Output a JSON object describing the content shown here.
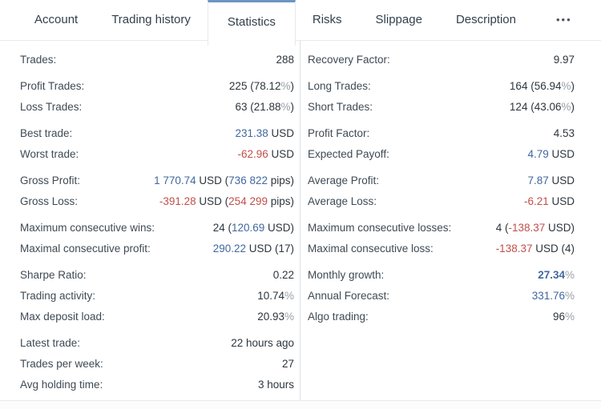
{
  "tabs": {
    "items": [
      {
        "label": "Account",
        "active": false
      },
      {
        "label": "Trading history",
        "active": false
      },
      {
        "label": "Statistics",
        "active": true
      },
      {
        "label": "Risks",
        "active": false
      },
      {
        "label": "Slippage",
        "active": false
      },
      {
        "label": "Description",
        "active": false
      }
    ],
    "overflow_label": "•••"
  },
  "colors": {
    "accent_blue": "#40689f",
    "active_tab_border": "#6e94c4",
    "negative_red": "#c0504a",
    "muted_gray": "#9aa1a8",
    "label_gray": "#3e4a54",
    "value_dark": "#2d363d",
    "divider": "#dcdfe2"
  },
  "stats": {
    "left": [
      {
        "rows": [
          {
            "label": "Trades:",
            "segments": [
              {
                "text": "288",
                "style": "d"
              }
            ]
          }
        ]
      },
      {
        "rows": [
          {
            "label": "Profit Trades:",
            "segments": [
              {
                "text": "225 (78.12",
                "style": "d"
              },
              {
                "text": "%",
                "style": "m"
              },
              {
                "text": ")",
                "style": "d"
              }
            ]
          },
          {
            "label": "Loss Trades:",
            "segments": [
              {
                "text": "63 (21.88",
                "style": "d"
              },
              {
                "text": "%",
                "style": "m"
              },
              {
                "text": ")",
                "style": "d"
              }
            ]
          }
        ]
      },
      {
        "rows": [
          {
            "label": "Best trade:",
            "segments": [
              {
                "text": "231.38",
                "style": "b"
              },
              {
                "text": " USD",
                "style": "d"
              }
            ]
          },
          {
            "label": "Worst trade:",
            "segments": [
              {
                "text": "-62.96",
                "style": "r"
              },
              {
                "text": " USD",
                "style": "d"
              }
            ]
          }
        ]
      },
      {
        "rows": [
          {
            "label": "Gross Profit:",
            "segments": [
              {
                "text": "1 770.74",
                "style": "b"
              },
              {
                "text": " USD (",
                "style": "d"
              },
              {
                "text": "736 822",
                "style": "b"
              },
              {
                "text": " pips)",
                "style": "d"
              }
            ]
          },
          {
            "label": "Gross Loss:",
            "segments": [
              {
                "text": "-391.28",
                "style": "r"
              },
              {
                "text": " USD (",
                "style": "d"
              },
              {
                "text": "254 299",
                "style": "r"
              },
              {
                "text": " pips)",
                "style": "d"
              }
            ]
          }
        ]
      },
      {
        "rows": [
          {
            "label": "Maximum consecutive wins:",
            "segments": [
              {
                "text": "24 (",
                "style": "d"
              },
              {
                "text": "120.69",
                "style": "b"
              },
              {
                "text": " USD)",
                "style": "d"
              }
            ]
          },
          {
            "label": "Maximal consecutive profit:",
            "segments": [
              {
                "text": "290.22",
                "style": "b"
              },
              {
                "text": " USD (17)",
                "style": "d"
              }
            ]
          }
        ]
      },
      {
        "rows": [
          {
            "label": "Sharpe Ratio:",
            "segments": [
              {
                "text": "0.22",
                "style": "d"
              }
            ]
          },
          {
            "label": "Trading activity:",
            "segments": [
              {
                "text": "10.74",
                "style": "d"
              },
              {
                "text": "%",
                "style": "m"
              }
            ]
          },
          {
            "label": "Max deposit load:",
            "segments": [
              {
                "text": "20.93",
                "style": "d"
              },
              {
                "text": "%",
                "style": "m"
              }
            ]
          }
        ]
      },
      {
        "rows": [
          {
            "label": "Latest trade:",
            "segments": [
              {
                "text": "22 hours ago",
                "style": "d"
              }
            ]
          },
          {
            "label": "Trades per week:",
            "segments": [
              {
                "text": "27",
                "style": "d"
              }
            ]
          },
          {
            "label": "Avg holding time:",
            "segments": [
              {
                "text": "3 hours",
                "style": "d"
              }
            ]
          }
        ]
      }
    ],
    "right": [
      {
        "rows": [
          {
            "label": "Recovery Factor:",
            "segments": [
              {
                "text": "9.97",
                "style": "d"
              }
            ]
          }
        ]
      },
      {
        "rows": [
          {
            "label": "Long Trades:",
            "segments": [
              {
                "text": "164 (56.94",
                "style": "d"
              },
              {
                "text": "%",
                "style": "m"
              },
              {
                "text": ")",
                "style": "d"
              }
            ]
          },
          {
            "label": "Short Trades:",
            "segments": [
              {
                "text": "124 (43.06",
                "style": "d"
              },
              {
                "text": "%",
                "style": "m"
              },
              {
                "text": ")",
                "style": "d"
              }
            ]
          }
        ]
      },
      {
        "rows": [
          {
            "label": "Profit Factor:",
            "segments": [
              {
                "text": "4.53",
                "style": "d"
              }
            ]
          },
          {
            "label": "Expected Payoff:",
            "segments": [
              {
                "text": "4.79",
                "style": "b"
              },
              {
                "text": " USD",
                "style": "d"
              }
            ]
          }
        ]
      },
      {
        "rows": [
          {
            "label": "Average Profit:",
            "segments": [
              {
                "text": "7.87",
                "style": "b"
              },
              {
                "text": " USD",
                "style": "d"
              }
            ]
          },
          {
            "label": "Average Loss:",
            "segments": [
              {
                "text": "-6.21",
                "style": "r"
              },
              {
                "text": " USD",
                "style": "d"
              }
            ]
          }
        ]
      },
      {
        "rows": [
          {
            "label": "Maximum consecutive losses:",
            "segments": [
              {
                "text": "4 (",
                "style": "d"
              },
              {
                "text": "-138.37",
                "style": "r"
              },
              {
                "text": " USD)",
                "style": "d"
              }
            ]
          },
          {
            "label": "Maximal consecutive loss:",
            "segments": [
              {
                "text": "-138.37",
                "style": "r"
              },
              {
                "text": " USD (4)",
                "style": "d"
              }
            ]
          }
        ]
      },
      {
        "rows": [
          {
            "label": "Monthly growth:",
            "segments": [
              {
                "text": "27.34",
                "style": "bb"
              },
              {
                "text": "%",
                "style": "m"
              }
            ]
          },
          {
            "label": "Annual Forecast:",
            "segments": [
              {
                "text": "331.76",
                "style": "b"
              },
              {
                "text": "%",
                "style": "m"
              }
            ]
          },
          {
            "label": "Algo trading:",
            "segments": [
              {
                "text": "96",
                "style": "d"
              },
              {
                "text": "%",
                "style": "m"
              }
            ]
          }
        ]
      }
    ]
  }
}
